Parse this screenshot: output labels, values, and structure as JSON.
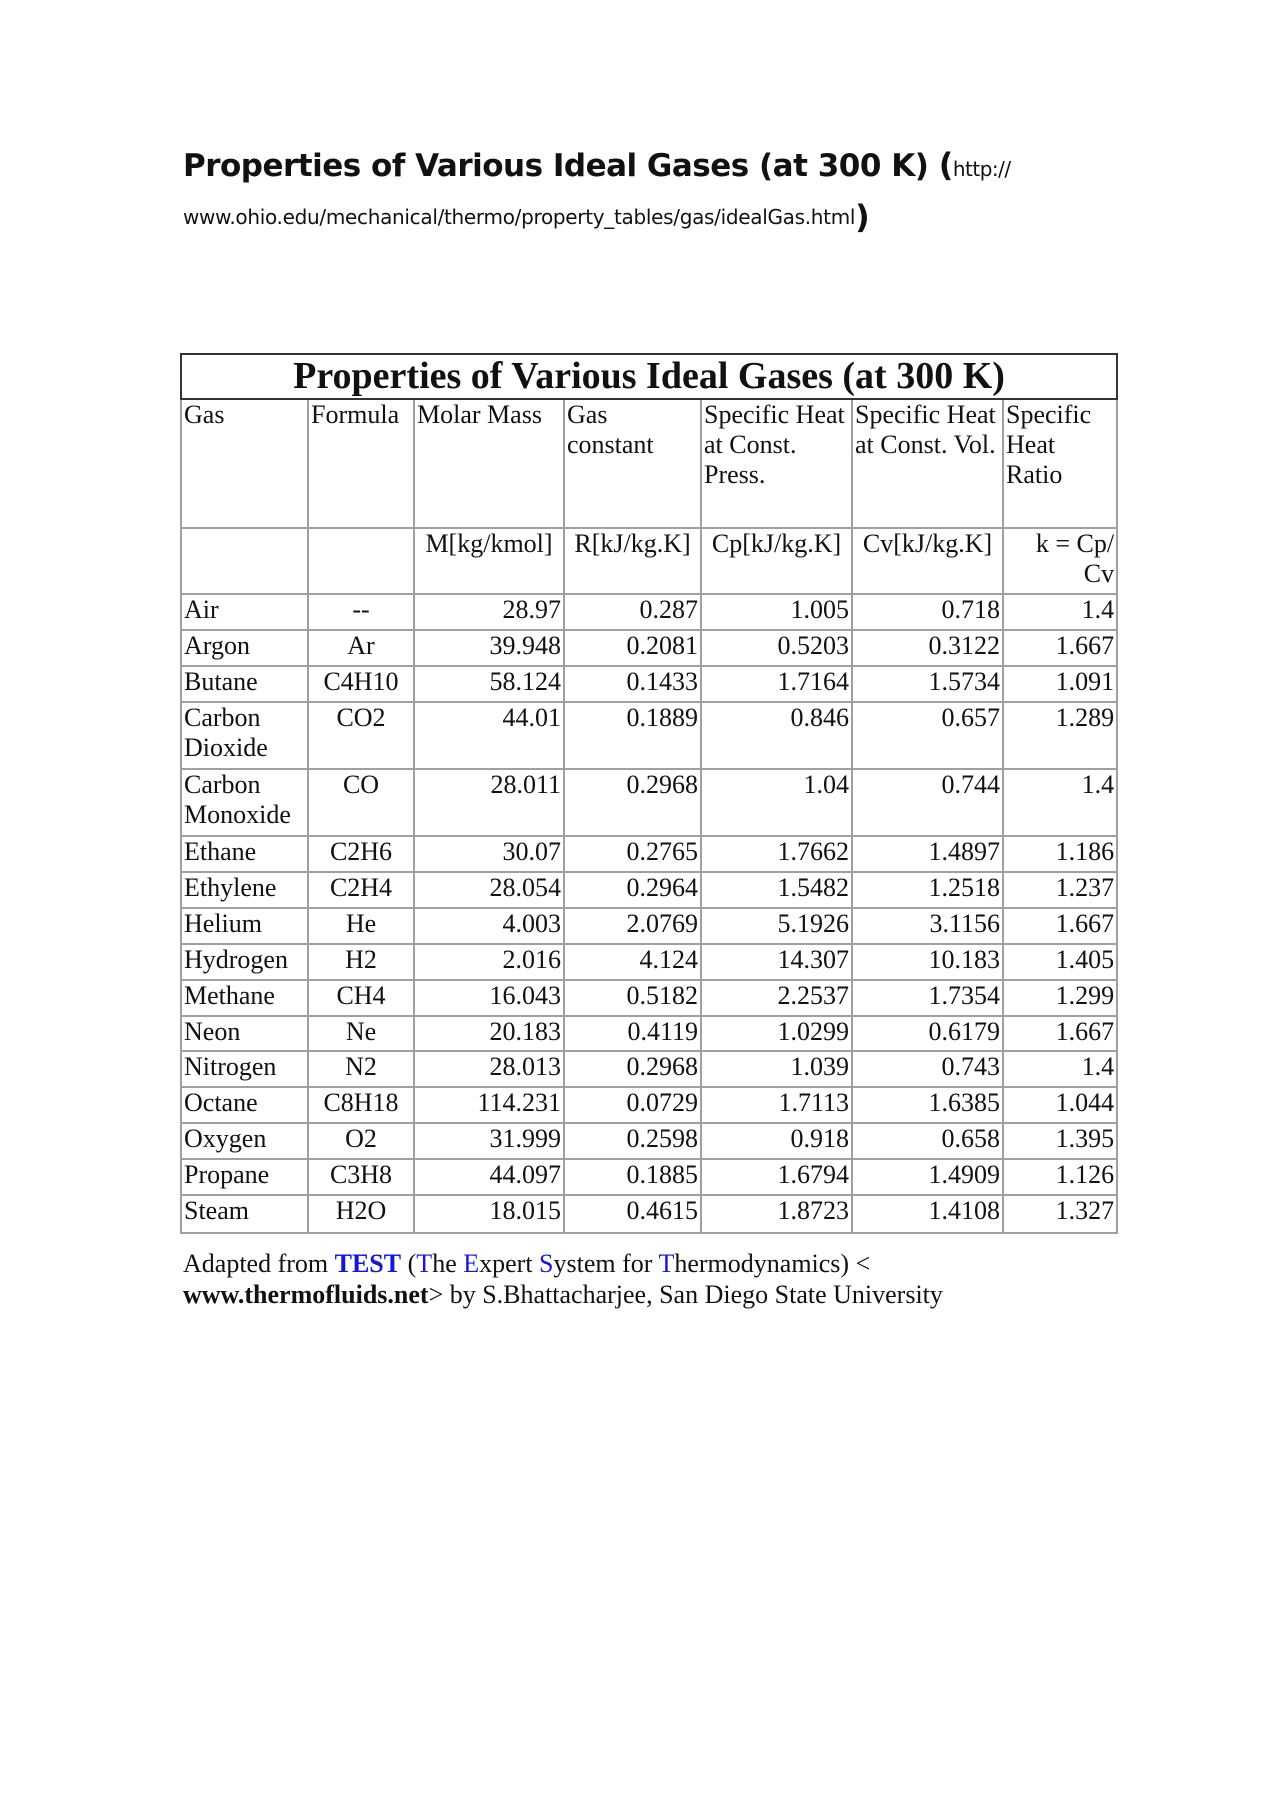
{
  "page_title": {
    "text": "Properties of Various Ideal Gases (at 300 K)",
    "open_paren": "(",
    "url_part1": "http://",
    "url_part2": "www.ohio.edu/mechanical/thermo/property_tables/gas/idealGas.html",
    "close_paren": ")"
  },
  "table": {
    "caption": "Properties of Various Ideal Gases (at 300 K)",
    "headers": [
      "Gas",
      "Formula",
      "Molar Mass",
      "Gas constant",
      "Specific Heat at Const. Press.",
      "Specific Heat at Const. Vol.",
      "Specific Heat Ratio"
    ],
    "units": [
      "",
      "",
      "M[kg/kmol]",
      "R[kJ/kg.K]",
      "Cp[kJ/kg.K]",
      "Cv[kJ/kg.K]",
      "k = Cp/ Cv"
    ],
    "rows": [
      [
        "Air",
        "--",
        "28.97",
        "0.287",
        "1.005",
        "0.718",
        "1.4"
      ],
      [
        "Argon",
        "Ar",
        "39.948",
        "0.2081",
        "0.5203",
        "0.3122",
        "1.667"
      ],
      [
        "Butane",
        "C4H10",
        "58.124",
        "0.1433",
        "1.7164",
        "1.5734",
        "1.091"
      ],
      [
        "Carbon Dioxide",
        "CO2",
        "44.01",
        "0.1889",
        "0.846",
        "0.657",
        "1.289"
      ],
      [
        "Carbon Monoxide",
        "CO",
        "28.011",
        "0.2968",
        "1.04",
        "0.744",
        "1.4"
      ],
      [
        "Ethane",
        "C2H6",
        "30.07",
        "0.2765",
        "1.7662",
        "1.4897",
        "1.186"
      ],
      [
        "Ethylene",
        "C2H4",
        "28.054",
        "0.2964",
        "1.5482",
        "1.2518",
        "1.237"
      ],
      [
        "Helium",
        "He",
        "4.003",
        "2.0769",
        "5.1926",
        "3.1156",
        "1.667"
      ],
      [
        "Hydrogen",
        "H2",
        "2.016",
        "4.124",
        "14.307",
        "10.183",
        "1.405"
      ],
      [
        "Methane",
        "CH4",
        "16.043",
        "0.5182",
        "2.2537",
        "1.7354",
        "1.299"
      ],
      [
        "Neon",
        "Ne",
        "20.183",
        "0.4119",
        "1.0299",
        "0.6179",
        "1.667"
      ],
      [
        "Nitrogen",
        "N2",
        "28.013",
        "0.2968",
        "1.039",
        "0.743",
        "1.4"
      ],
      [
        "Octane",
        "C8H18",
        "114.231",
        "0.0729",
        "1.7113",
        "1.6385",
        "1.044"
      ],
      [
        "Oxygen",
        "O2",
        "31.999",
        "0.2598",
        "0.918",
        "0.658",
        "1.395"
      ],
      [
        "Propane",
        "C3H8",
        "44.097",
        "0.1885",
        "1.6794",
        "1.4909",
        "1.126"
      ],
      [
        "Steam",
        "H2O",
        "18.015",
        "0.4615",
        "1.8723",
        "1.4108",
        "1.327"
      ]
    ]
  },
  "footer": {
    "adapted_from": "Adapted from ",
    "test": "TEST",
    "open": " (",
    "t1": "T",
    "he": "he ",
    "e1": "E",
    "xpert": "xpert ",
    "s1": "S",
    "ystem": "ystem for ",
    "t2": "T",
    "hermo": "hermodynamics) <",
    "site": "www.thermofluids.net",
    "by": "> by S.Bhattacharjee, San Diego State University"
  },
  "colors": {
    "link_blue": "#1515e0",
    "border": "#a0a0a0"
  }
}
